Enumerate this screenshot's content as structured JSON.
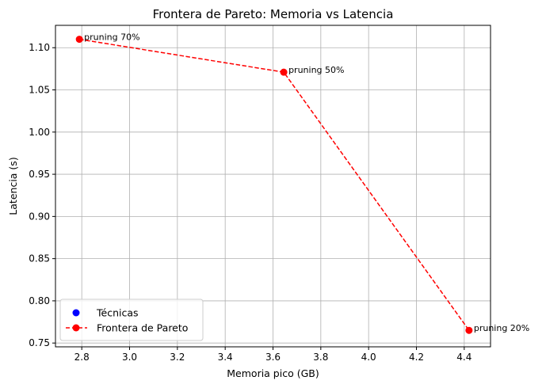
{
  "chart_data": {
    "type": "scatter",
    "title": "Frontera de Pareto: Memoria vs Latencia",
    "xlabel": "Memoria pico (GB)",
    "ylabel": "Latencia (s)",
    "xlim": [
      2.69,
      4.51
    ],
    "ylim": [
      0.7455,
      1.1265
    ],
    "xticks": [
      2.8,
      3.0,
      3.2,
      3.4,
      3.6,
      3.8,
      4.0,
      4.2,
      4.4
    ],
    "xtick_labels": [
      "2.8",
      "3.0",
      "3.2",
      "3.4",
      "3.6",
      "3.8",
      "4.0",
      "4.2",
      "4.4"
    ],
    "yticks": [
      0.75,
      0.8,
      0.85,
      0.9,
      0.95,
      1.0,
      1.05,
      1.1
    ],
    "ytick_labels": [
      "0.75",
      "0.80",
      "0.85",
      "0.90",
      "0.95",
      "1.00",
      "1.05",
      "1.10"
    ],
    "grid": true,
    "legend_position": "lower-left",
    "series": [
      {
        "name": "Técnicas",
        "kind": "scatter",
        "color": "#0000ff",
        "points": []
      },
      {
        "name": "Frontera de Pareto",
        "kind": "line-dashed-markers",
        "color": "#ff0000",
        "points": [
          {
            "x": 2.79,
            "y": 1.11,
            "label": "pruning 70%"
          },
          {
            "x": 3.645,
            "y": 1.071,
            "label": "pruning 50%"
          },
          {
            "x": 4.42,
            "y": 0.765,
            "label": "pruning 20%"
          }
        ]
      }
    ]
  }
}
